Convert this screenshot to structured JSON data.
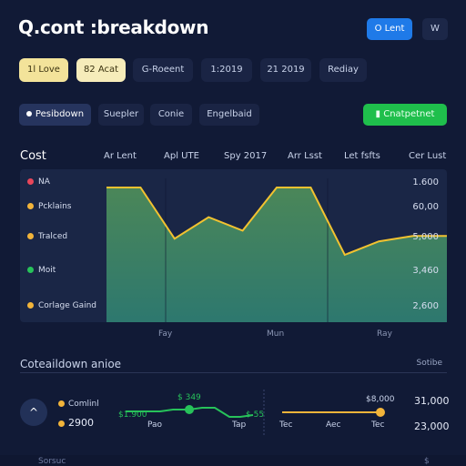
{
  "header": {
    "title": "Q.cont :breakdown",
    "primary_button": "O Lent",
    "icon_button": "W"
  },
  "filters": [
    "1l Love",
    "82 Acat",
    "G-Roeent",
    "1:2019",
    "21 2019",
    "Rediay"
  ],
  "tabs": {
    "items": [
      "Pesibdown",
      "Suepler",
      "Conie",
      "Engelbaid"
    ],
    "action_button": "Cnatpetnet"
  },
  "chart": {
    "row_label": "Cost",
    "column_headers": [
      "Ar Lent",
      "Apl UTE",
      "Spy 2017",
      "Arr Lsst",
      "Let fsfts",
      "Cer Lust"
    ],
    "legend": [
      {
        "label": "NA",
        "color": "#e8465a"
      },
      {
        "label": "Pcklains",
        "color": "#f2b43a"
      },
      {
        "label": "Tralced",
        "color": "#f2b43a"
      },
      {
        "label": "Moit",
        "color": "#27c25a"
      },
      {
        "label": "Corlage Gaind",
        "color": "#f2b43a"
      }
    ],
    "y_values": [
      "1.600",
      "60,00",
      "5,000",
      "3,460",
      "2,600"
    ],
    "x_labels": [
      "Fay",
      "Mun",
      "Ray"
    ],
    "accent_color": "#f2c230",
    "fill_color": "#3a8a6a"
  },
  "chart_data": {
    "type": "area",
    "ylabel": "",
    "xlabel": "",
    "values": [
      1.0,
      1.0,
      0.62,
      0.78,
      0.68,
      1.0,
      1.0,
      0.5,
      0.6,
      0.64,
      0.64
    ]
  },
  "breakdown": {
    "title": "Coteaildown anioe",
    "link": "Sotibe",
    "item_label": "Comlinl",
    "item_value": "2900",
    "spark1": {
      "left": "$1.900",
      "top": "$ 349",
      "right": "$ 55",
      "x1": "Pao",
      "x2": "Tap"
    },
    "spark2": {
      "top": "$8,000",
      "x1": "Tec",
      "x2": "Aec",
      "x3": "Tec"
    },
    "right_values": [
      "31,000",
      "23,000"
    ]
  },
  "footer": {
    "left": "Sorsuc",
    "right": "$"
  }
}
